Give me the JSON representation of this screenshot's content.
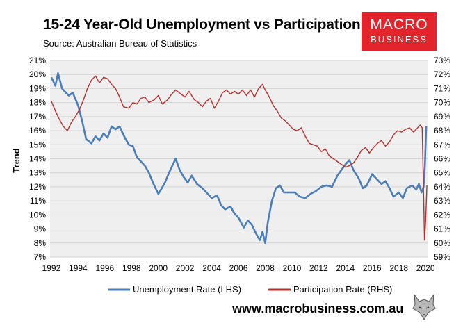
{
  "header": {
    "title": "15-24 Year-Old Unemployment vs Participation",
    "source": "Source: Australian Bureau of Statistics"
  },
  "logo": {
    "line1": "MACRO",
    "line2": "BUSINESS",
    "bg_color": "#e3242b"
  },
  "footer": {
    "website": "www.macrobusiness.com.au"
  },
  "chart_data": {
    "type": "line",
    "ylabel": "Trend",
    "xlabel": "",
    "xlim": [
      1991.9,
      2020.2
    ],
    "ylim_left": [
      7,
      21
    ],
    "ylim_right": [
      59,
      73
    ],
    "x_ticks": [
      "1992",
      "1994",
      "1996",
      "1998",
      "2000",
      "2002",
      "2004",
      "2006",
      "2008",
      "2010",
      "2012",
      "2014",
      "2016",
      "2018",
      "2020"
    ],
    "y_ticks_left": [
      "7%",
      "8%",
      "9%",
      "10%",
      "11%",
      "12%",
      "13%",
      "14%",
      "15%",
      "16%",
      "17%",
      "18%",
      "19%",
      "20%",
      "21%"
    ],
    "y_ticks_right": [
      "59%",
      "60%",
      "61%",
      "62%",
      "63%",
      "64%",
      "65%",
      "66%",
      "67%",
      "68%",
      "69%",
      "70%",
      "71%",
      "72%",
      "73%"
    ],
    "grid": "horizontal",
    "plot_background": "#efefef",
    "legend_position": "bottom",
    "series": [
      {
        "name": "Unemployment Rate (LHS)",
        "axis": "left",
        "color": "#4a7ebb",
        "points": [
          [
            1992.0,
            19.8
          ],
          [
            1992.3,
            19.2
          ],
          [
            1992.5,
            20.1
          ],
          [
            1992.8,
            19.0
          ],
          [
            1993.0,
            18.8
          ],
          [
            1993.3,
            18.5
          ],
          [
            1993.6,
            18.7
          ],
          [
            1994.0,
            17.8
          ],
          [
            1994.3,
            16.7
          ],
          [
            1994.6,
            15.4
          ],
          [
            1995.0,
            15.1
          ],
          [
            1995.3,
            15.6
          ],
          [
            1995.6,
            15.3
          ],
          [
            1995.9,
            15.8
          ],
          [
            1996.2,
            15.5
          ],
          [
            1996.5,
            16.3
          ],
          [
            1996.8,
            16.1
          ],
          [
            1997.1,
            16.3
          ],
          [
            1997.5,
            15.5
          ],
          [
            1997.8,
            15.0
          ],
          [
            1998.1,
            14.9
          ],
          [
            1998.4,
            14.1
          ],
          [
            1998.7,
            13.8
          ],
          [
            1999.0,
            13.5
          ],
          [
            1999.3,
            13.0
          ],
          [
            1999.6,
            12.3
          ],
          [
            2000.0,
            11.5
          ],
          [
            2000.2,
            11.8
          ],
          [
            2000.5,
            12.3
          ],
          [
            2000.8,
            13.0
          ],
          [
            2001.0,
            13.4
          ],
          [
            2001.3,
            14.0
          ],
          [
            2001.6,
            13.2
          ],
          [
            2001.9,
            12.7
          ],
          [
            2002.2,
            12.3
          ],
          [
            2002.5,
            12.8
          ],
          [
            2002.9,
            12.2
          ],
          [
            2003.3,
            11.9
          ],
          [
            2003.7,
            11.5
          ],
          [
            2004.0,
            11.2
          ],
          [
            2004.4,
            11.4
          ],
          [
            2004.7,
            10.7
          ],
          [
            2005.0,
            10.4
          ],
          [
            2005.4,
            10.6
          ],
          [
            2005.7,
            10.1
          ],
          [
            2006.0,
            9.8
          ],
          [
            2006.4,
            9.1
          ],
          [
            2006.7,
            9.6
          ],
          [
            2007.0,
            9.3
          ],
          [
            2007.3,
            8.7
          ],
          [
            2007.6,
            8.2
          ],
          [
            2007.8,
            8.8
          ],
          [
            2008.0,
            8.0
          ],
          [
            2008.2,
            9.5
          ],
          [
            2008.5,
            11.0
          ],
          [
            2008.8,
            11.9
          ],
          [
            2009.1,
            12.1
          ],
          [
            2009.4,
            11.6
          ],
          [
            2009.8,
            11.6
          ],
          [
            2010.2,
            11.6
          ],
          [
            2010.6,
            11.3
          ],
          [
            2011.0,
            11.2
          ],
          [
            2011.4,
            11.5
          ],
          [
            2011.8,
            11.7
          ],
          [
            2012.2,
            12.0
          ],
          [
            2012.6,
            12.1
          ],
          [
            2013.0,
            12.0
          ],
          [
            2013.4,
            12.8
          ],
          [
            2013.7,
            13.2
          ],
          [
            2014.0,
            13.6
          ],
          [
            2014.3,
            13.9
          ],
          [
            2014.6,
            13.2
          ],
          [
            2015.0,
            12.6
          ],
          [
            2015.3,
            11.9
          ],
          [
            2015.6,
            12.1
          ],
          [
            2016.0,
            12.9
          ],
          [
            2016.3,
            12.6
          ],
          [
            2016.7,
            12.2
          ],
          [
            2017.0,
            12.4
          ],
          [
            2017.3,
            11.9
          ],
          [
            2017.6,
            11.3
          ],
          [
            2018.0,
            11.6
          ],
          [
            2018.3,
            11.2
          ],
          [
            2018.6,
            11.9
          ],
          [
            2019.0,
            12.1
          ],
          [
            2019.3,
            11.8
          ],
          [
            2019.5,
            12.2
          ],
          [
            2019.7,
            11.6
          ],
          [
            2019.85,
            12.0
          ],
          [
            2019.95,
            13.5
          ],
          [
            2020.05,
            16.3
          ]
        ]
      },
      {
        "name": "Participation Rate (RHS)",
        "axis": "right",
        "color": "#b5302c",
        "points": [
          [
            1992.0,
            70.1
          ],
          [
            1992.3,
            69.4
          ],
          [
            1992.6,
            68.8
          ],
          [
            1992.9,
            68.3
          ],
          [
            1993.2,
            68.0
          ],
          [
            1993.5,
            68.6
          ],
          [
            1993.8,
            69.0
          ],
          [
            1994.1,
            69.5
          ],
          [
            1994.4,
            70.2
          ],
          [
            1994.7,
            71.0
          ],
          [
            1995.0,
            71.6
          ],
          [
            1995.3,
            71.9
          ],
          [
            1995.6,
            71.4
          ],
          [
            1995.9,
            71.8
          ],
          [
            1996.2,
            71.7
          ],
          [
            1996.5,
            71.3
          ],
          [
            1996.8,
            71.0
          ],
          [
            1997.1,
            70.4
          ],
          [
            1997.4,
            69.7
          ],
          [
            1997.8,
            69.6
          ],
          [
            1998.1,
            70.0
          ],
          [
            1998.4,
            69.9
          ],
          [
            1998.7,
            70.3
          ],
          [
            1999.0,
            70.4
          ],
          [
            1999.3,
            70.0
          ],
          [
            1999.7,
            70.2
          ],
          [
            2000.0,
            70.5
          ],
          [
            2000.3,
            69.9
          ],
          [
            2000.7,
            70.2
          ],
          [
            2001.0,
            70.6
          ],
          [
            2001.3,
            70.9
          ],
          [
            2001.7,
            70.6
          ],
          [
            2002.0,
            70.4
          ],
          [
            2002.3,
            70.8
          ],
          [
            2002.7,
            70.2
          ],
          [
            2003.0,
            70.0
          ],
          [
            2003.3,
            69.7
          ],
          [
            2003.6,
            70.1
          ],
          [
            2003.9,
            70.3
          ],
          [
            2004.2,
            69.6
          ],
          [
            2004.5,
            70.1
          ],
          [
            2004.8,
            70.7
          ],
          [
            2005.1,
            70.9
          ],
          [
            2005.4,
            70.6
          ],
          [
            2005.7,
            70.8
          ],
          [
            2006.0,
            70.6
          ],
          [
            2006.3,
            70.9
          ],
          [
            2006.6,
            70.5
          ],
          [
            2006.9,
            70.9
          ],
          [
            2007.2,
            70.4
          ],
          [
            2007.5,
            71.0
          ],
          [
            2007.8,
            71.3
          ],
          [
            2008.0,
            70.9
          ],
          [
            2008.3,
            70.4
          ],
          [
            2008.6,
            69.8
          ],
          [
            2008.9,
            69.4
          ],
          [
            2009.2,
            68.9
          ],
          [
            2009.5,
            68.7
          ],
          [
            2009.8,
            68.4
          ],
          [
            2010.1,
            68.1
          ],
          [
            2010.4,
            68.0
          ],
          [
            2010.7,
            68.2
          ],
          [
            2011.0,
            67.6
          ],
          [
            2011.3,
            67.1
          ],
          [
            2011.6,
            67.0
          ],
          [
            2011.9,
            66.9
          ],
          [
            2012.2,
            66.5
          ],
          [
            2012.5,
            66.7
          ],
          [
            2012.8,
            66.2
          ],
          [
            2013.1,
            66.0
          ],
          [
            2013.4,
            65.8
          ],
          [
            2013.7,
            65.6
          ],
          [
            2014.0,
            65.4
          ],
          [
            2014.3,
            65.5
          ],
          [
            2014.6,
            65.7
          ],
          [
            2014.9,
            66.1
          ],
          [
            2015.2,
            66.6
          ],
          [
            2015.5,
            66.8
          ],
          [
            2015.8,
            66.4
          ],
          [
            2016.1,
            66.8
          ],
          [
            2016.4,
            67.1
          ],
          [
            2016.7,
            67.3
          ],
          [
            2017.0,
            66.9
          ],
          [
            2017.3,
            67.2
          ],
          [
            2017.6,
            67.7
          ],
          [
            2017.9,
            68.0
          ],
          [
            2018.2,
            67.9
          ],
          [
            2018.5,
            68.1
          ],
          [
            2018.8,
            68.2
          ],
          [
            2019.1,
            67.9
          ],
          [
            2019.4,
            68.2
          ],
          [
            2019.6,
            68.4
          ],
          [
            2019.75,
            68.2
          ],
          [
            2019.85,
            63.5
          ],
          [
            2019.92,
            60.2
          ],
          [
            2020.0,
            61.5
          ],
          [
            2020.1,
            64.1
          ]
        ]
      }
    ]
  }
}
